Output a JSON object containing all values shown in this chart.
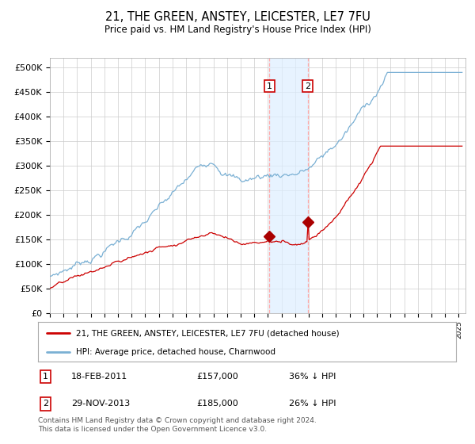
{
  "title": "21, THE GREEN, ANSTEY, LEICESTER, LE7 7FU",
  "subtitle": "Price paid vs. HM Land Registry's House Price Index (HPI)",
  "ylabel_ticks": [
    "£0",
    "£50K",
    "£100K",
    "£150K",
    "£200K",
    "£250K",
    "£300K",
    "£350K",
    "£400K",
    "£450K",
    "£500K"
  ],
  "ytick_values": [
    0,
    50000,
    100000,
    150000,
    200000,
    250000,
    300000,
    350000,
    400000,
    450000,
    500000
  ],
  "ylim": [
    0,
    520000
  ],
  "xlim_start": 1995.0,
  "xlim_end": 2025.5,
  "hpi_color": "#7ab0d4",
  "price_color": "#cc0000",
  "marker_color": "#aa0000",
  "shade_color": "#ddeeff",
  "vline_color": "#ffaaaa",
  "legend_label_price": "21, THE GREEN, ANSTEY, LEICESTER, LE7 7FU (detached house)",
  "legend_label_hpi": "HPI: Average price, detached house, Charnwood",
  "transaction1_date": 2011.12,
  "transaction1_price": 157000,
  "transaction1_label": "1",
  "transaction1_display": "18-FEB-2011",
  "transaction1_amount": "£157,000",
  "transaction1_pct": "36% ↓ HPI",
  "transaction2_date": 2013.92,
  "transaction2_price": 185000,
  "transaction2_label": "2",
  "transaction2_display": "29-NOV-2013",
  "transaction2_amount": "£185,000",
  "transaction2_pct": "26% ↓ HPI",
  "footnote": "Contains HM Land Registry data © Crown copyright and database right 2024.\nThis data is licensed under the Open Government Licence v3.0.",
  "background_color": "#ffffff",
  "grid_color": "#cccccc"
}
